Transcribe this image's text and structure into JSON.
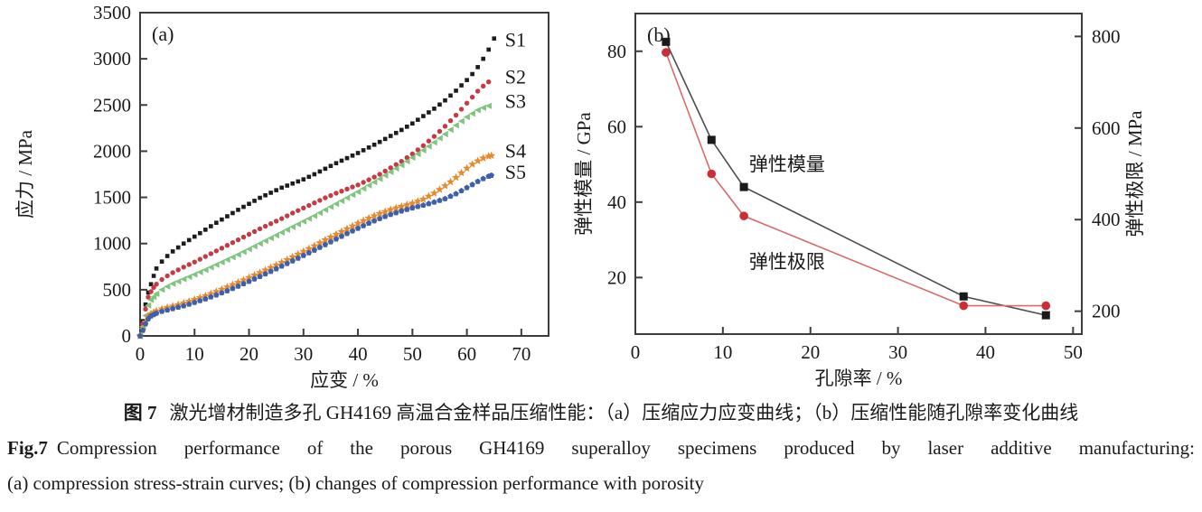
{
  "caption": {
    "zh_label": "图 7",
    "zh_text": "激光增材制造多孔 GH4169 高温合金样品压缩性能：（a）压缩应力应变曲线；（b）压缩性能随孔隙率变化曲线",
    "en_label": "Fig.7",
    "en_text": "Compression performance of the porous GH4169 superalloy specimens produced by laser additive manufacturing:",
    "en_line2": "(a) compression stress-strain curves; (b) changes of compression performance with porosity"
  },
  "chart_data": [
    {
      "id": "a",
      "type": "scatter",
      "panel_label": "(a)",
      "xlabel": "应变 / %",
      "ylabel": "应力 / MPa",
      "xlim": [
        0,
        75
      ],
      "ylim": [
        0,
        3500
      ],
      "xticks": [
        0,
        10,
        20,
        30,
        40,
        50,
        60,
        70
      ],
      "yticks": [
        0,
        500,
        1000,
        1500,
        2000,
        2500,
        3000,
        3500
      ],
      "grid": false,
      "legend_position": "end-of-curve-labels",
      "series": [
        {
          "name": "S1",
          "color": "#1c1c1c",
          "marker": "square",
          "marker_size": 4.6,
          "label_x": 67,
          "label_y": 3210,
          "points": [
            [
              0,
              0
            ],
            [
              0.5,
              160
            ],
            [
              1,
              340
            ],
            [
              1.5,
              470
            ],
            [
              2,
              560
            ],
            [
              2.5,
              650
            ],
            [
              3,
              730
            ],
            [
              4,
              805
            ],
            [
              5,
              865
            ],
            [
              6,
              915
            ],
            [
              8,
              1000
            ],
            [
              10,
              1075
            ],
            [
              12,
              1150
            ],
            [
              14,
              1225
            ],
            [
              16,
              1295
            ],
            [
              18,
              1365
            ],
            [
              20,
              1430
            ],
            [
              22,
              1495
            ],
            [
              24,
              1550
            ],
            [
              26,
              1605
            ],
            [
              28,
              1650
            ],
            [
              30,
              1695
            ],
            [
              32,
              1750
            ],
            [
              34,
              1810
            ],
            [
              36,
              1870
            ],
            [
              38,
              1925
            ],
            [
              40,
              1980
            ],
            [
              42,
              2040
            ],
            [
              44,
              2100
            ],
            [
              46,
              2165
            ],
            [
              48,
              2230
            ],
            [
              50,
              2300
            ],
            [
              52,
              2380
            ],
            [
              54,
              2460
            ],
            [
              56,
              2550
            ],
            [
              58,
              2655
            ],
            [
              60,
              2770
            ],
            [
              61,
              2835
            ],
            [
              62,
              2910
            ],
            [
              63,
              3000
            ],
            [
              64,
              3100
            ],
            [
              65,
              3220
            ]
          ]
        },
        {
          "name": "S2",
          "color": "#c53a44",
          "marker": "circle",
          "marker_size": 5.4,
          "label_x": 67,
          "label_y": 2810,
          "points": [
            [
              0,
              0
            ],
            [
              0.5,
              130
            ],
            [
              1,
              290
            ],
            [
              1.5,
              420
            ],
            [
              2,
              480
            ],
            [
              2.5,
              525
            ],
            [
              3,
              560
            ],
            [
              4,
              610
            ],
            [
              5,
              650
            ],
            [
              6,
              685
            ],
            [
              8,
              745
            ],
            [
              10,
              800
            ],
            [
              12,
              860
            ],
            [
              14,
              920
            ],
            [
              16,
              980
            ],
            [
              18,
              1040
            ],
            [
              20,
              1100
            ],
            [
              22,
              1160
            ],
            [
              24,
              1215
            ],
            [
              26,
              1270
            ],
            [
              28,
              1330
            ],
            [
              30,
              1385
            ],
            [
              32,
              1440
            ],
            [
              34,
              1495
            ],
            [
              36,
              1545
            ],
            [
              38,
              1590
            ],
            [
              40,
              1635
            ],
            [
              42,
              1690
            ],
            [
              44,
              1750
            ],
            [
              46,
              1820
            ],
            [
              48,
              1890
            ],
            [
              50,
              1970
            ],
            [
              52,
              2060
            ],
            [
              54,
              2160
            ],
            [
              56,
              2270
            ],
            [
              58,
              2390
            ],
            [
              60,
              2520
            ],
            [
              62,
              2650
            ],
            [
              63,
              2705
            ],
            [
              64,
              2750
            ]
          ]
        },
        {
          "name": "S3",
          "color": "#7fc47f",
          "marker": "triangle-left",
          "marker_size": 7.5,
          "label_x": 67,
          "label_y": 2545,
          "points": [
            [
              0,
              0
            ],
            [
              0.5,
              100
            ],
            [
              1,
              220
            ],
            [
              1.5,
              330
            ],
            [
              2,
              390
            ],
            [
              3,
              455
            ],
            [
              4,
              500
            ],
            [
              5,
              535
            ],
            [
              6,
              565
            ],
            [
              8,
              615
            ],
            [
              10,
              665
            ],
            [
              12,
              715
            ],
            [
              14,
              770
            ],
            [
              16,
              825
            ],
            [
              18,
              880
            ],
            [
              20,
              940
            ],
            [
              22,
              1000
            ],
            [
              24,
              1060
            ],
            [
              26,
              1120
            ],
            [
              28,
              1180
            ],
            [
              30,
              1240
            ],
            [
              32,
              1300
            ],
            [
              34,
              1365
            ],
            [
              36,
              1430
            ],
            [
              38,
              1495
            ],
            [
              40,
              1560
            ],
            [
              42,
              1630
            ],
            [
              44,
              1700
            ],
            [
              46,
              1775
            ],
            [
              48,
              1850
            ],
            [
              50,
              1930
            ],
            [
              52,
              2010
            ],
            [
              54,
              2095
            ],
            [
              56,
              2185
            ],
            [
              58,
              2280
            ],
            [
              60,
              2370
            ],
            [
              62,
              2445
            ],
            [
              63,
              2470
            ],
            [
              64,
              2490
            ]
          ]
        },
        {
          "name": "S4",
          "color": "#e78a2e",
          "marker": "star",
          "marker_size": 9.5,
          "label_x": 67,
          "label_y": 2010,
          "points": [
            [
              0,
              0
            ],
            [
              0.5,
              70
            ],
            [
              1,
              150
            ],
            [
              1.5,
              210
            ],
            [
              2,
              240
            ],
            [
              3,
              270
            ],
            [
              4,
              292
            ],
            [
              5,
              308
            ],
            [
              6,
              322
            ],
            [
              8,
              355
            ],
            [
              10,
              395
            ],
            [
              12,
              435
            ],
            [
              14,
              480
            ],
            [
              16,
              530
            ],
            [
              18,
              580
            ],
            [
              20,
              632
            ],
            [
              22,
              685
            ],
            [
              24,
              740
            ],
            [
              26,
              796
            ],
            [
              28,
              855
            ],
            [
              30,
              915
            ],
            [
              32,
              975
            ],
            [
              34,
              1040
            ],
            [
              36,
              1100
            ],
            [
              38,
              1160
            ],
            [
              40,
              1220
            ],
            [
              42,
              1275
            ],
            [
              44,
              1325
            ],
            [
              46,
              1368
            ],
            [
              48,
              1402
            ],
            [
              50,
              1436
            ],
            [
              52,
              1480
            ],
            [
              54,
              1545
            ],
            [
              56,
              1625
            ],
            [
              57,
              1668
            ],
            [
              58,
              1715
            ],
            [
              59,
              1765
            ],
            [
              60,
              1815
            ],
            [
              61,
              1858
            ],
            [
              62,
              1895
            ],
            [
              63,
              1925
            ],
            [
              64,
              1945
            ],
            [
              64.5,
              1952
            ]
          ]
        },
        {
          "name": "S5",
          "color": "#3e5fa9",
          "marker": "pentagon",
          "marker_size": 6.8,
          "label_x": 67,
          "label_y": 1780,
          "points": [
            [
              0,
              0
            ],
            [
              0.5,
              60
            ],
            [
              1,
              130
            ],
            [
              1.5,
              185
            ],
            [
              2,
              215
            ],
            [
              3,
              245
            ],
            [
              4,
              265
            ],
            [
              5,
              280
            ],
            [
              6,
              295
            ],
            [
              8,
              325
            ],
            [
              10,
              362
            ],
            [
              12,
              400
            ],
            [
              14,
              443
            ],
            [
              16,
              488
            ],
            [
              18,
              538
            ],
            [
              20,
              590
            ],
            [
              22,
              643
            ],
            [
              24,
              698
            ],
            [
              26,
              755
            ],
            [
              28,
              812
            ],
            [
              30,
              870
            ],
            [
              32,
              928
            ],
            [
              34,
              988
            ],
            [
              36,
              1048
            ],
            [
              38,
              1108
            ],
            [
              40,
              1165
            ],
            [
              42,
              1220
            ],
            [
              44,
              1270
            ],
            [
              46,
              1315
            ],
            [
              48,
              1352
            ],
            [
              50,
              1385
            ],
            [
              52,
              1415
            ],
            [
              54,
              1448
            ],
            [
              56,
              1485
            ],
            [
              58,
              1538
            ],
            [
              60,
              1605
            ],
            [
              61,
              1638
            ],
            [
              62,
              1672
            ],
            [
              63,
              1702
            ],
            [
              64,
              1728
            ],
            [
              64.5,
              1738
            ]
          ]
        }
      ]
    },
    {
      "id": "b",
      "type": "line",
      "panel_label": "(b)",
      "xlabel": "孔隙率 / %",
      "ylabel_left": "弹性模量 / GPa",
      "ylabel_right": "弹性极限 / MPa",
      "xlim": [
        0,
        51
      ],
      "ylim_left": [
        5,
        90
      ],
      "ylim_right": [
        150,
        850
      ],
      "xticks": [
        0,
        10,
        20,
        30,
        40,
        50
      ],
      "yticks_left": [
        20,
        40,
        60,
        80
      ],
      "yticks_right": [
        200,
        400,
        600,
        800
      ],
      "grid": false,
      "series": [
        {
          "name": "弹性模量",
          "axis": "left",
          "line_color": "#4d4d4d",
          "marker": "square",
          "marker_color": "#1a1a1a",
          "marker_size": 9,
          "x": [
            3.5,
            8.7,
            12.4,
            37.5,
            46.9
          ],
          "y": [
            82.5,
            56.5,
            44,
            15,
            10
          ],
          "label_x": 13,
          "label_y": 50
        },
        {
          "name": "弹性极限",
          "axis": "right",
          "line_color": "#d96a6a",
          "marker": "circle",
          "marker_color": "#cc2e35",
          "marker_size": 9.6,
          "x": [
            3.5,
            8.7,
            12.4,
            37.5,
            46.9
          ],
          "y": [
            765,
            500,
            408,
            212,
            212
          ],
          "label_x": 13,
          "label_y": 308
        }
      ]
    }
  ]
}
